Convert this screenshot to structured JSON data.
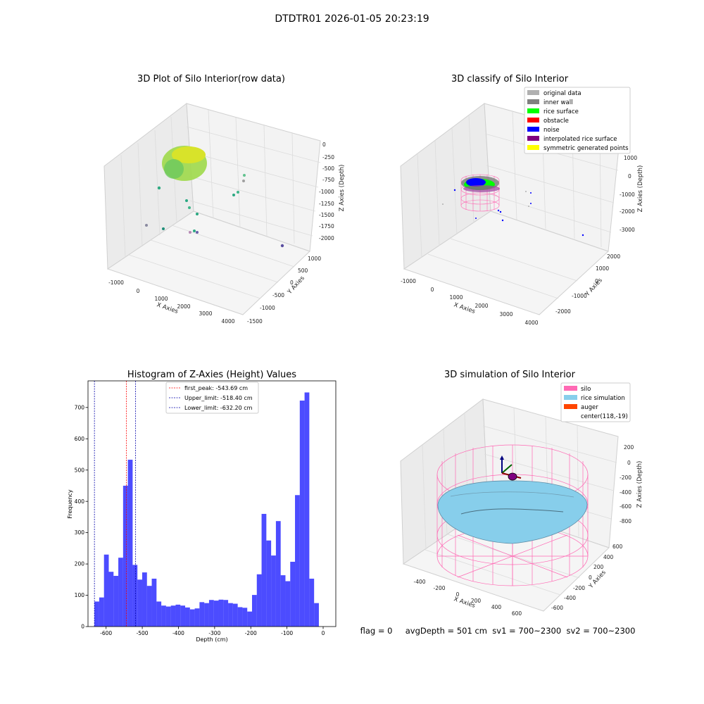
{
  "suptitle": "DTDTR01 2026-01-05 20:23:19",
  "panels": {
    "raw": {
      "title": "3D Plot of Silo Interior(row data)",
      "x_ticks": [
        "-1000",
        "0",
        "1000",
        "2000",
        "3000",
        "4000"
      ],
      "y_ticks": [
        "-1500",
        "-1000",
        "-500",
        "0",
        "500",
        "1000"
      ],
      "z_ticks": [
        "0",
        "-250",
        "-500",
        "-750",
        "-1000",
        "-1250",
        "-1500",
        "-1750",
        "-2000"
      ],
      "xlabel": "X Axies",
      "ylabel": "Y Axies",
      "zlabel": "Z Axies (Depth)"
    },
    "classify": {
      "title": "3D classify of Silo Interior",
      "x_ticks": [
        "-1000",
        "0",
        "1000",
        "2000",
        "3000",
        "4000"
      ],
      "y_ticks": [
        "-2000",
        "-1000",
        "0",
        "1000",
        "2000"
      ],
      "z_ticks": [
        "1000",
        "0",
        "-1000",
        "-2000",
        "-3000"
      ],
      "xlabel": "X Axies",
      "ylabel": "Y Axies",
      "zlabel": "Z Axies (Depth)",
      "legend": [
        {
          "label": "original data",
          "color": "#b0b0b0"
        },
        {
          "label": "inner wall",
          "color": "#808080"
        },
        {
          "label": "rice surface",
          "color": "#00ff00"
        },
        {
          "label": "obstacle",
          "color": "#ff0000"
        },
        {
          "label": "noise",
          "color": "#0000ff"
        },
        {
          "label": "interpolated rice surface",
          "color": "#800080"
        },
        {
          "label": "symmetric generated points",
          "color": "#ffff00"
        }
      ]
    },
    "simulation": {
      "title": "3D simulation of Silo Interior",
      "x_ticks": [
        "-400",
        "-200",
        "0",
        "200",
        "400",
        "600"
      ],
      "y_ticks": [
        "-600",
        "-400",
        "-200",
        "0",
        "200",
        "400",
        "600"
      ],
      "z_ticks": [
        "200",
        "0",
        "-200",
        "-400",
        "-600",
        "-800"
      ],
      "xlabel": "X Axies",
      "ylabel": "Y Axies",
      "zlabel": "Z Axies (Depth)",
      "legend": [
        {
          "label": "silo",
          "color": "#ff69b4"
        },
        {
          "label": "rice simulation",
          "color": "#87ceeb"
        },
        {
          "label": "auger",
          "color": "#ff4500"
        },
        {
          "label": "center(118,-19)",
          "color": ""
        }
      ]
    },
    "status_line": "flag = 0     avgDepth = 501 cm  sv1 = 700~2300  sv2 = 700~2300"
  },
  "chart_data": {
    "type": "bar",
    "title": "Histogram of Z-Axies (Height) Values",
    "xlabel": "Depth (cm)",
    "ylabel": "Frequency",
    "xlim": [
      -650,
      35
    ],
    "ylim": [
      0,
      785
    ],
    "x_ticks": [
      -600,
      -500,
      -400,
      -300,
      -200,
      -100,
      0
    ],
    "y_ticks": [
      0,
      100,
      200,
      300,
      400,
      500,
      600,
      700
    ],
    "bar_color": "#0000ff",
    "bin_edges": [
      -632.2,
      -619.0,
      -605.8,
      -592.6,
      -579.4,
      -566.2,
      -553.0,
      -539.8,
      -526.6,
      -513.4,
      -500.2,
      -487.0,
      -473.8,
      -460.6,
      -447.4,
      -434.2,
      -421.0,
      -407.8,
      -394.6,
      -381.4,
      -368.2,
      -355.0,
      -341.8,
      -328.6,
      -315.4,
      -302.2,
      -289.0,
      -275.8,
      -262.6,
      -249.4,
      -236.2,
      -223.0,
      -209.8,
      -196.6,
      -183.4,
      -170.2,
      -157.0,
      -143.8,
      -130.6,
      -117.4,
      -104.2,
      -91.0,
      -77.8,
      -64.6,
      -51.4,
      -38.2,
      -25.0,
      -11.8,
      1.4
    ],
    "values": [
      80,
      93,
      230,
      175,
      162,
      220,
      450,
      533,
      197,
      150,
      173,
      130,
      153,
      80,
      67,
      64,
      67,
      70,
      67,
      61,
      55,
      58,
      78,
      75,
      85,
      83,
      86,
      85,
      75,
      73,
      62,
      60,
      48,
      101,
      167,
      360,
      275,
      227,
      337,
      164,
      145,
      207,
      420,
      722,
      748,
      153,
      75,
      0
    ],
    "lines": [
      {
        "label": "first_peak: -543.69 cm",
        "x": -543.69,
        "color": "#ff0000"
      },
      {
        "label": "Upper_limit: -518.40 cm",
        "x": -518.4,
        "color": "#0000aa"
      },
      {
        "label": "Lower_limit: -632.20 cm",
        "x": -632.2,
        "color": "#0000aa"
      }
    ]
  }
}
